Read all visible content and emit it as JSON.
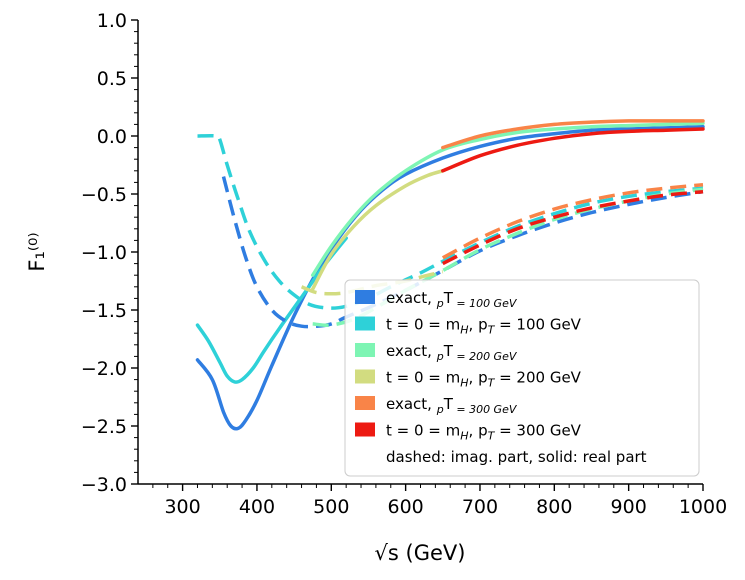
{
  "chart_data": {
    "type": "line",
    "title": "",
    "xlabel": "√s (GeV)",
    "ylabel": "F₁⁽⁰⁾",
    "xlim": [
      240,
      1000
    ],
    "ylim": [
      -3.0,
      1.0
    ],
    "x_ticks": [
      300,
      400,
      500,
      600,
      700,
      800,
      900,
      1000
    ],
    "y_ticks": [
      -3.0,
      -2.5,
      -2.0,
      -1.5,
      -1.0,
      -0.5,
      0.0,
      0.5,
      1.0
    ],
    "x_tick_labels": [
      "300",
      "400",
      "500",
      "600",
      "700",
      "800",
      "900",
      "1000"
    ],
    "y_tick_labels": [
      "−3.0",
      "−2.5",
      "−2.0",
      "−1.5",
      "−1.0",
      "−0.5",
      "0.0",
      "0.5",
      "1.0"
    ],
    "grid": false,
    "legend_position": "lower-right",
    "series": [
      {
        "name": "exact, p_T = 100 GeV",
        "legend": [
          "exact, ",
          "p",
          "T",
          " = 100 GeV"
        ],
        "color": "#2f7de1",
        "real": {
          "x": [
            320,
            340,
            355,
            365,
            375,
            385,
            400,
            420,
            450,
            480,
            510,
            540,
            570,
            600,
            650,
            700,
            750,
            800,
            850,
            900,
            950,
            1000
          ],
          "y": [
            -1.93,
            -2.1,
            -2.38,
            -2.5,
            -2.52,
            -2.45,
            -2.28,
            -1.98,
            -1.55,
            -1.18,
            -0.88,
            -0.64,
            -0.46,
            -0.33,
            -0.19,
            -0.09,
            -0.02,
            0.02,
            0.05,
            0.06,
            0.07,
            0.08
          ]
        },
        "imag": {
          "x": [
            355,
            370,
            385,
            400,
            420,
            440,
            460,
            480,
            500,
            520,
            550,
            600,
            650,
            700,
            750,
            800,
            850,
            900,
            950,
            1000
          ],
          "y": [
            -0.35,
            -0.72,
            -1.05,
            -1.3,
            -1.5,
            -1.6,
            -1.64,
            -1.64,
            -1.62,
            -1.56,
            -1.48,
            -1.33,
            -1.16,
            -0.99,
            -0.86,
            -0.75,
            -0.66,
            -0.59,
            -0.53,
            -0.48
          ]
        }
      },
      {
        "name": "t = 0 = m_H, p_T = 100 GeV",
        "legend": [
          "t = 0 = m",
          "H",
          ", p",
          "T",
          " = 100 GeV"
        ],
        "color": "#2ed1d8",
        "real": {
          "x": [
            320,
            335,
            350,
            360,
            370,
            380,
            395,
            410,
            430,
            450,
            470,
            490,
            520
          ],
          "y": [
            -1.63,
            -1.77,
            -1.95,
            -2.07,
            -2.12,
            -2.1,
            -2.0,
            -1.85,
            -1.66,
            -1.48,
            -1.3,
            -1.12,
            -0.88
          ]
        },
        "imag": {
          "x": [
            320,
            345,
            350,
            360,
            375,
            390,
            410,
            430,
            450,
            470,
            490,
            510,
            530,
            550,
            580,
            620,
            650,
            700,
            750,
            800,
            850,
            900,
            950,
            1000
          ],
          "y": [
            0.0,
            0.0,
            -0.03,
            -0.25,
            -0.55,
            -0.82,
            -1.07,
            -1.25,
            -1.37,
            -1.45,
            -1.48,
            -1.48,
            -1.45,
            -1.4,
            -1.3,
            -1.18,
            -1.08,
            -0.92,
            -0.78,
            -0.67,
            -0.58,
            -0.52,
            -0.48,
            -0.45
          ]
        }
      },
      {
        "name": "exact, p_T = 200 GeV",
        "legend": [
          "exact, ",
          "p",
          "T",
          " = 200 GeV"
        ],
        "color": "#7ef5b4",
        "real": {
          "x": [
            475,
            500,
            530,
            560,
            600,
            650,
            700,
            750,
            800,
            850,
            900,
            950,
            1000
          ],
          "y": [
            -1.2,
            -0.95,
            -0.7,
            -0.5,
            -0.3,
            -0.12,
            -0.03,
            0.03,
            0.06,
            0.08,
            0.09,
            0.1,
            0.11
          ]
        },
        "imag": {
          "x": [
            475,
            500,
            530,
            560,
            600,
            650,
            700,
            750,
            800,
            850,
            900,
            950,
            1000
          ],
          "y": [
            -1.62,
            -1.63,
            -1.58,
            -1.48,
            -1.33,
            -1.16,
            -0.98,
            -0.84,
            -0.72,
            -0.63,
            -0.56,
            -0.5,
            -0.46
          ]
        }
      },
      {
        "name": "t = 0 = m_H, p_T = 200 GeV",
        "legend": [
          "t = 0 = m",
          "H",
          ", p",
          "T",
          " = 200 GeV"
        ],
        "color": "#d2dc80",
        "real": {
          "x": [
            475,
            500,
            530,
            560,
            600,
            630,
            650
          ],
          "y": [
            -1.32,
            -1.02,
            -0.78,
            -0.6,
            -0.43,
            -0.34,
            -0.3
          ]
        },
        "imag": {
          "x": [
            460,
            480,
            500,
            520,
            540,
            560,
            600,
            630,
            650
          ],
          "y": [
            -1.3,
            -1.35,
            -1.36,
            -1.35,
            -1.32,
            -1.29,
            -1.25,
            -1.2,
            -1.17
          ]
        }
      },
      {
        "name": "exact, p_T = 300 GeV",
        "legend": [
          "exact, ",
          "p",
          "T",
          " = 300 GeV"
        ],
        "color": "#f98448",
        "real": {
          "x": [
            650,
            700,
            750,
            800,
            850,
            900,
            950,
            1000
          ],
          "y": [
            -0.1,
            0.0,
            0.06,
            0.1,
            0.12,
            0.13,
            0.13,
            0.13
          ]
        },
        "imag": {
          "x": [
            650,
            700,
            750,
            800,
            850,
            900,
            950,
            1000
          ],
          "y": [
            -1.05,
            -0.88,
            -0.74,
            -0.63,
            -0.55,
            -0.49,
            -0.45,
            -0.42
          ]
        }
      },
      {
        "name": "t = 0 = m_H, p_T = 300 GeV",
        "legend": [
          "t = 0 = m",
          "H",
          ", p",
          "T",
          " = 300 GeV"
        ],
        "color": "#ed1a12",
        "real": {
          "x": [
            650,
            700,
            750,
            800,
            850,
            900,
            950,
            1000
          ],
          "y": [
            -0.3,
            -0.17,
            -0.08,
            -0.02,
            0.02,
            0.04,
            0.05,
            0.06
          ]
        },
        "imag": {
          "x": [
            650,
            700,
            750,
            800,
            850,
            900,
            950,
            1000
          ],
          "y": [
            -1.1,
            -0.94,
            -0.8,
            -0.7,
            -0.62,
            -0.56,
            -0.51,
            -0.48
          ]
        }
      }
    ],
    "legend_note": "dashed: imag. part, solid: real part"
  }
}
